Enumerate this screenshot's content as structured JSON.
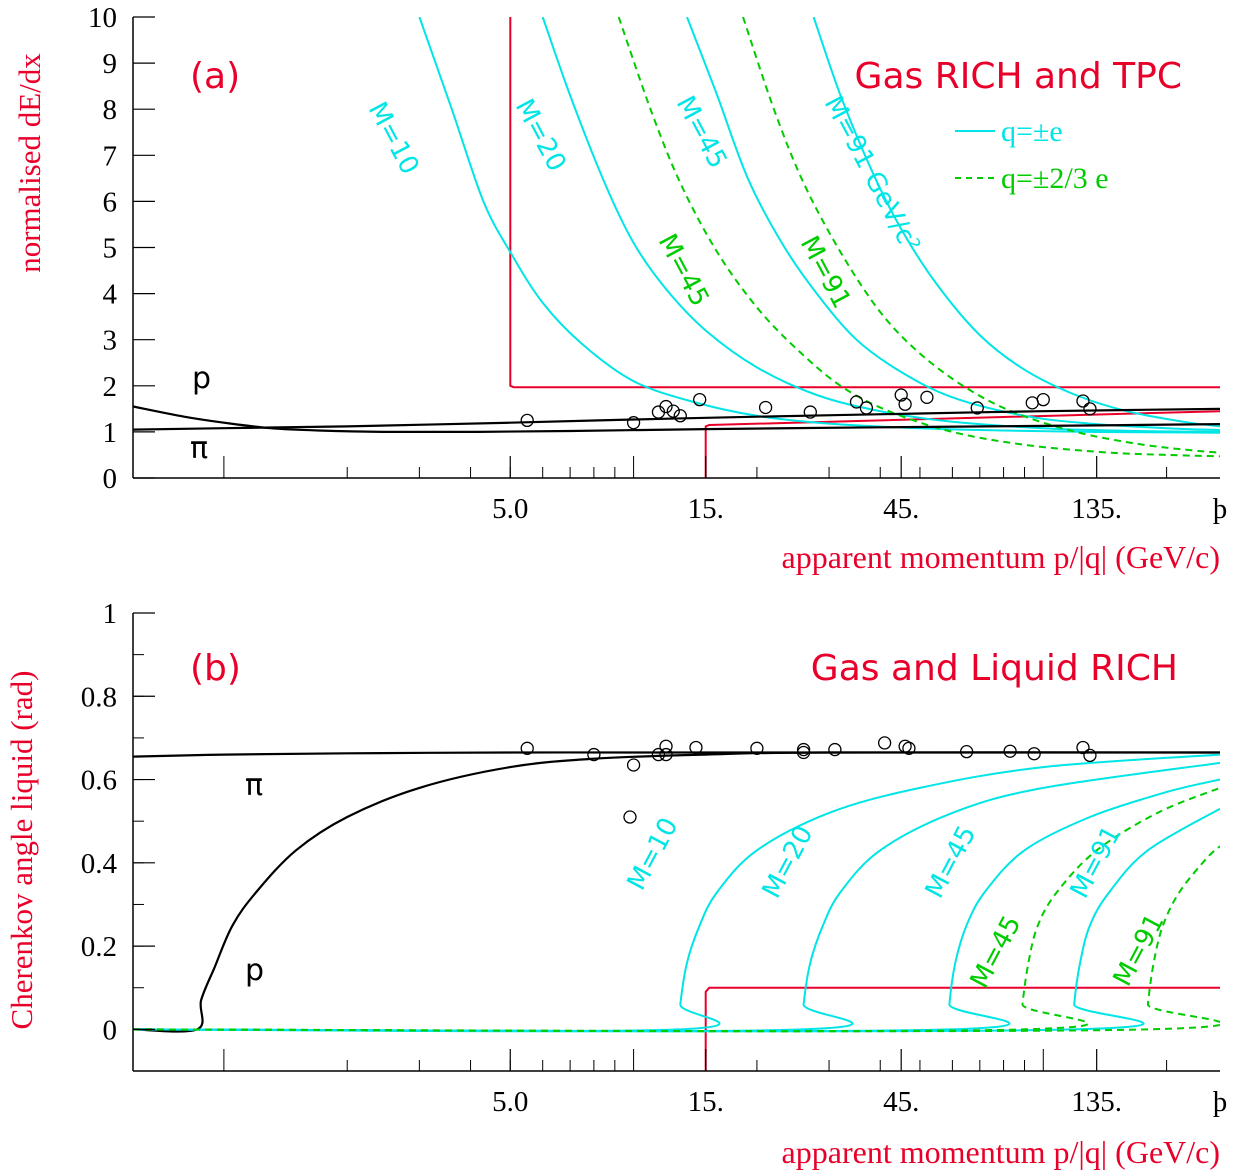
{
  "colors": {
    "axis": "#000000",
    "cut": "#e8002a",
    "cyan": "#00e5e5",
    "green": "#00cc00",
    "text_red": "#e8002a"
  },
  "chart_data": [
    {
      "type": "line",
      "panel_label": "(a)",
      "title": "Gas RICH and TPC",
      "xlabel": "apparent momentum p/|q| (GeV/c)",
      "ylabel": "normalised dE/dx",
      "x_scale": "log",
      "xlim": [
        0.6,
        270
      ],
      "ylim": [
        0,
        10
      ],
      "x_tick_labels": [
        "5.0",
        "15.",
        "45.",
        "135."
      ],
      "x_tick_values": [
        5,
        15,
        45,
        135
      ],
      "x_end_label": "þ",
      "y_tick_labels": [
        "0",
        "1",
        "2",
        "3",
        "4",
        "5",
        "6",
        "7",
        "8",
        "9",
        "10"
      ],
      "y_tick_values": [
        0,
        1,
        2,
        3,
        4,
        5,
        6,
        7,
        8,
        9,
        10
      ],
      "species_labels": [
        "p",
        "π"
      ],
      "legend": [
        {
          "label": "q=±e",
          "style": "solid",
          "color": "#00e5e5",
          "text_color": "#00e5e5"
        },
        {
          "label": "q=±2/3 e",
          "style": "dashed",
          "color": "#00cc00",
          "text_color": "#00cc00"
        }
      ],
      "series": [
        {
          "label": "M=10",
          "style": "solid",
          "color": "#00e5e5",
          "x": [
            3.0,
            3.6,
            4.3,
            5.0,
            6.0,
            7.5,
            10,
            14,
            20,
            30,
            50,
            80,
            130,
            200,
            270
          ],
          "y": [
            10.0,
            8.0,
            6.0,
            4.9,
            3.8,
            2.9,
            2.1,
            1.65,
            1.35,
            1.18,
            1.08,
            1.03,
            1.0,
            0.99,
            0.98
          ]
        },
        {
          "label": "M=20",
          "style": "solid",
          "color": "#00e5e5",
          "x": [
            6.0,
            7.0,
            8.5,
            10,
            12,
            15,
            20,
            28,
            40,
            60,
            100,
            150,
            200,
            270
          ],
          "y": [
            10.0,
            8.3,
            6.4,
            5.1,
            4.1,
            3.2,
            2.4,
            1.8,
            1.45,
            1.22,
            1.08,
            1.03,
            1.01,
            1.0
          ]
        },
        {
          "label": "M=45",
          "style": "solid",
          "color": "#00e5e5",
          "x": [
            13.5,
            16,
            19,
            23,
            28,
            35,
            45,
            60,
            90,
            130,
            200,
            270
          ],
          "y": [
            10.0,
            8.3,
            6.5,
            5.1,
            4.0,
            3.0,
            2.3,
            1.75,
            1.35,
            1.18,
            1.08,
            1.04
          ]
        },
        {
          "label": "M=91",
          "style": "solid",
          "color": "#00e5e5",
          "x": [
            27.5,
            32,
            38,
            45,
            55,
            70,
            90,
            120,
            160,
            220,
            270
          ],
          "y": [
            10.0,
            8.3,
            6.7,
            5.4,
            4.2,
            3.1,
            2.35,
            1.8,
            1.45,
            1.22,
            1.12
          ]
        },
        {
          "label": "M=45",
          "style": "dashed",
          "color": "#00cc00",
          "x": [
            9.2,
            11,
            13,
            16,
            20,
            25,
            32,
            42,
            60,
            90,
            140,
            200,
            270
          ],
          "y": [
            10.0,
            8.0,
            6.4,
            4.9,
            3.7,
            2.8,
            2.0,
            1.45,
            1.0,
            0.72,
            0.56,
            0.5,
            0.47
          ]
        },
        {
          "label": "M=91",
          "style": "dashed",
          "color": "#00cc00",
          "x": [
            18.5,
            22,
            26,
            32,
            40,
            50,
            65,
            85,
            120,
            170,
            230,
            270
          ],
          "y": [
            10.0,
            8.0,
            6.4,
            4.9,
            3.6,
            2.7,
            1.95,
            1.42,
            1.0,
            0.74,
            0.6,
            0.55
          ]
        },
        {
          "label": "p",
          "style": "solid",
          "color": "#000000",
          "x": [
            0.6,
            0.8,
            1.0,
            1.3,
            1.7,
            2.5,
            4,
            7,
            15,
            40,
            100,
            270
          ],
          "y": [
            1.55,
            1.33,
            1.2,
            1.08,
            1.03,
            1.0,
            1.0,
            1.02,
            1.06,
            1.1,
            1.13,
            1.17
          ]
        },
        {
          "label": "π",
          "style": "solid",
          "color": "#000000",
          "x": [
            0.6,
            1,
            2,
            5,
            10,
            20,
            50,
            100,
            270
          ],
          "y": [
            1.05,
            1.08,
            1.12,
            1.2,
            1.27,
            1.33,
            1.4,
            1.45,
            1.5
          ]
        }
      ],
      "cut_lines": [
        {
          "x": [
            5.0,
            5.0,
            5.1,
            270
          ],
          "y": [
            10,
            2.0,
            1.97,
            1.97
          ],
          "color": "#e8002a"
        },
        {
          "x": [
            15.0,
            15.0,
            15.3,
            270
          ],
          "y": [
            0,
            1.12,
            1.15,
            1.45
          ],
          "color": "#e8002a"
        }
      ],
      "points": {
        "x": [
          5.5,
          10.0,
          11.5,
          12.0,
          12.5,
          13.0,
          14.5,
          21.0,
          27.0,
          35.0,
          37.0,
          45.0,
          46.0,
          52.0,
          69.0,
          94.0,
          100.0,
          125.0,
          130.0
        ],
        "y": [
          1.25,
          1.2,
          1.43,
          1.55,
          1.45,
          1.35,
          1.7,
          1.53,
          1.43,
          1.65,
          1.52,
          1.8,
          1.6,
          1.75,
          1.52,
          1.63,
          1.7,
          1.67,
          1.5
        ]
      }
    },
    {
      "type": "line",
      "panel_label": "(b)",
      "title": "Gas and Liquid RICH",
      "xlabel": "apparent momentum p/|q| (GeV/c)",
      "ylabel": "Cherenkov angle liquid (rad)",
      "x_scale": "log",
      "xlim": [
        0.6,
        270
      ],
      "ylim": [
        -0.1,
        1.0
      ],
      "x_tick_labels": [
        "5.0",
        "15.",
        "45.",
        "135."
      ],
      "x_tick_values": [
        5,
        15,
        45,
        135
      ],
      "x_end_label": "þ",
      "y_tick_labels": [
        "0",
        "0.2",
        "0.4",
        "0.6",
        "0.8",
        "1"
      ],
      "y_tick_values": [
        0,
        0.2,
        0.4,
        0.6,
        0.8,
        1.0
      ],
      "species_labels": [
        "π",
        "p"
      ],
      "series": [
        {
          "label": "π",
          "style": "solid",
          "color": "#000000",
          "x": [
            0.6,
            1,
            2,
            5,
            10,
            30,
            270
          ],
          "y": [
            0.655,
            0.66,
            0.663,
            0.665,
            0.665,
            0.665,
            0.665
          ]
        },
        {
          "label": "p",
          "style": "solid",
          "color": "#000000",
          "x": [
            0.6,
            0.86,
            0.88,
            0.95,
            1.05,
            1.2,
            1.5,
            2.0,
            3.0,
            5.0,
            8.0,
            15,
            30,
            270
          ],
          "y": [
            0,
            0,
            0.07,
            0.15,
            0.25,
            0.33,
            0.43,
            0.51,
            0.58,
            0.63,
            0.65,
            0.66,
            0.665,
            0.665
          ]
        },
        {
          "label": "M=10",
          "style": "solid",
          "color": "#00e5e5",
          "x": [
            0.6,
            12.9,
            13.0,
            13.5,
            14.5,
            16,
            20,
            30,
            50,
            100,
            270
          ],
          "y": [
            0,
            0,
            0.06,
            0.16,
            0.25,
            0.33,
            0.43,
            0.52,
            0.58,
            0.63,
            0.66
          ]
        },
        {
          "label": "M=20",
          "style": "solid",
          "color": "#00e5e5",
          "x": [
            0.6,
            25.9,
            26.0,
            27,
            29,
            32,
            40,
            60,
            100,
            270
          ],
          "y": [
            0,
            0,
            0.06,
            0.16,
            0.25,
            0.33,
            0.43,
            0.52,
            0.58,
            0.64
          ]
        },
        {
          "label": "M=45",
          "style": "solid",
          "color": "#00e5e5",
          "x": [
            0.6,
            58.9,
            59.0,
            61,
            65,
            72,
            90,
            130,
            200,
            270
          ],
          "y": [
            0,
            0,
            0.06,
            0.16,
            0.25,
            0.33,
            0.43,
            0.51,
            0.57,
            0.6
          ]
        },
        {
          "label": "M=91",
          "style": "solid",
          "color": "#00e5e5",
          "x": [
            0.6,
            118.9,
            119,
            123,
            130,
            145,
            180,
            270
          ],
          "y": [
            0,
            0,
            0.06,
            0.16,
            0.25,
            0.33,
            0.43,
            0.53
          ]
        },
        {
          "label": "M=45",
          "style": "dashed",
          "color": "#00cc00",
          "x": [
            0.6,
            88.9,
            89,
            92,
            97,
            108,
            135,
            190,
            270
          ],
          "y": [
            0,
            0,
            0.06,
            0.16,
            0.25,
            0.33,
            0.43,
            0.52,
            0.58
          ]
        },
        {
          "label": "M=91",
          "style": "dashed",
          "color": "#00cc00",
          "x": [
            0.6,
            179,
            180,
            186,
            196,
            215,
            250,
            270
          ],
          "y": [
            0,
            0,
            0.06,
            0.16,
            0.25,
            0.33,
            0.41,
            0.44
          ]
        }
      ],
      "cut_lines": [
        {
          "x": [
            15.0,
            15.0,
            15.3,
            270
          ],
          "y": [
            -0.1,
            0.09,
            0.1,
            0.1
          ],
          "color": "#e8002a"
        }
      ],
      "points": {
        "x": [
          5.5,
          8.0,
          9.8,
          10.0,
          11.5,
          12.0,
          12.0,
          14.2,
          20.0,
          26.0,
          26.0,
          31.0,
          41.0,
          46.0,
          47.0,
          65.0,
          83.0,
          95.0,
          125.0,
          130.0
        ],
        "y": [
          0.675,
          0.66,
          0.51,
          0.635,
          0.66,
          0.68,
          0.66,
          0.677,
          0.675,
          0.672,
          0.665,
          0.672,
          0.688,
          0.68,
          0.675,
          0.667,
          0.668,
          0.662,
          0.677,
          0.658
        ]
      }
    }
  ]
}
